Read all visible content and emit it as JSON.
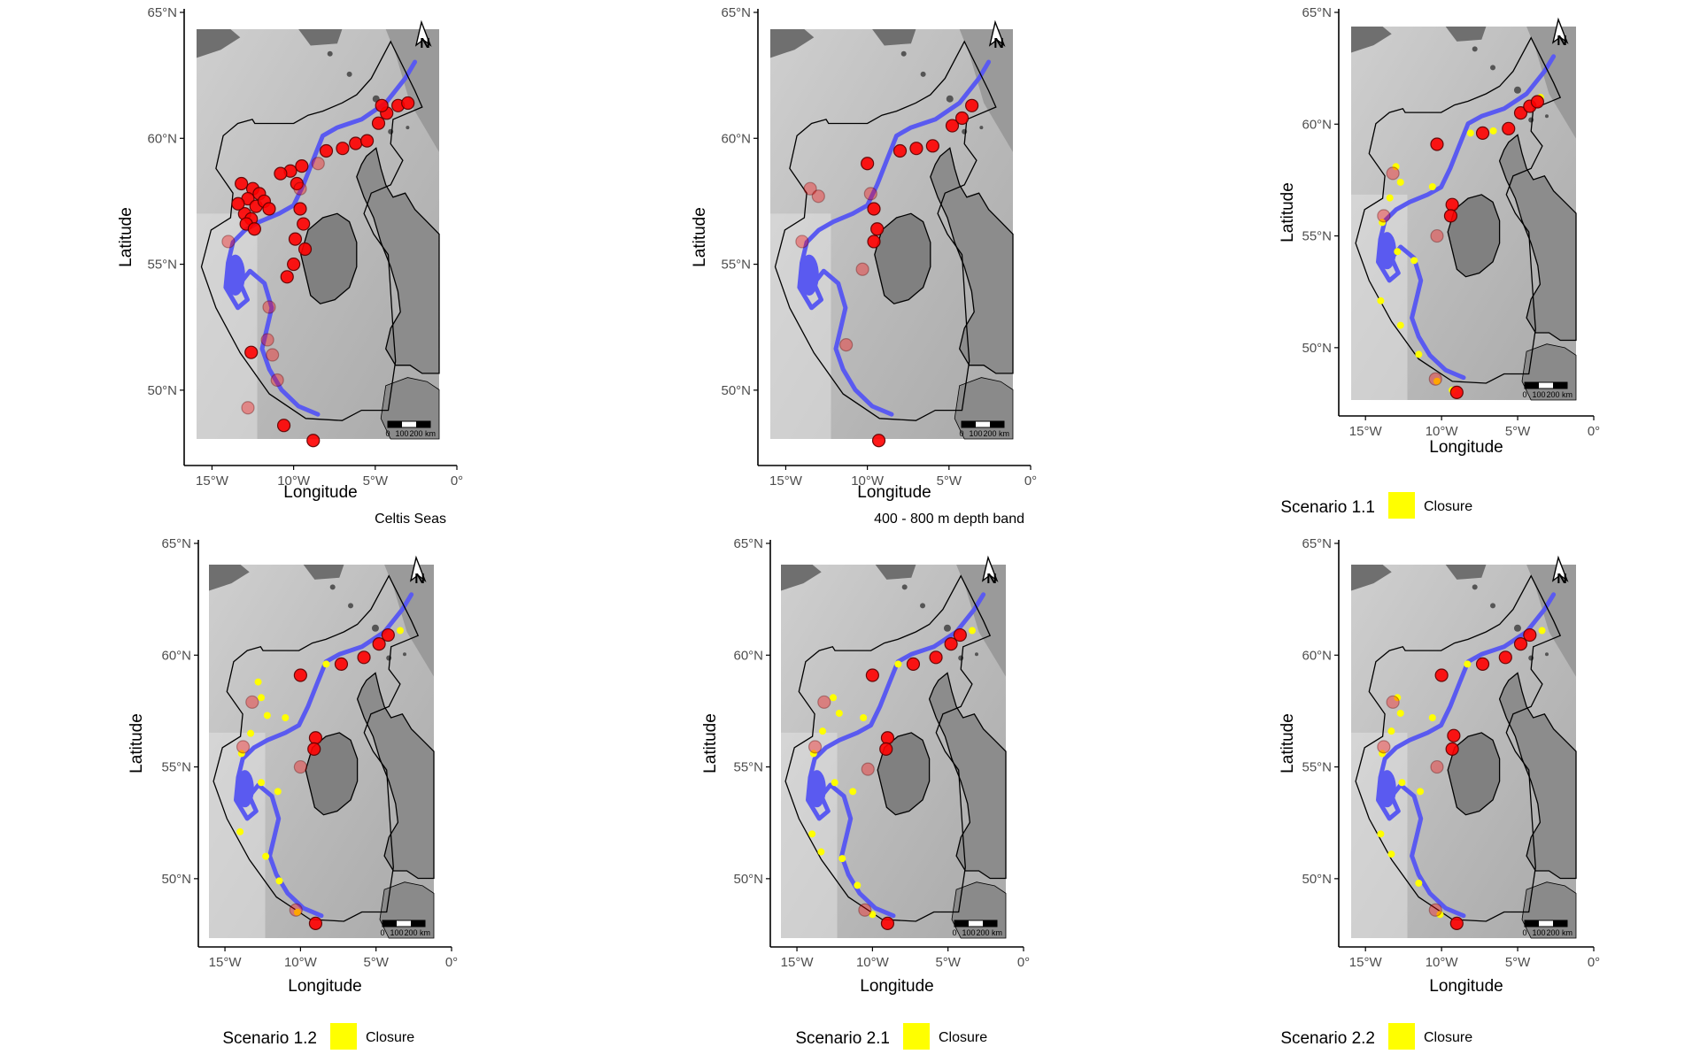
{
  "colors": {
    "sea_base": "#bdbdbd",
    "land": "#6f6f6f",
    "ireland": "#808080",
    "depth_band": "#5a5af0",
    "vme_point": "#ff0000",
    "closure": "#ffff00",
    "axis": "#000000",
    "tick_text": "#4d4d4d"
  },
  "map_extent": {
    "lon": [
      -16,
      0
    ],
    "lat": [
      47.5,
      65
    ]
  },
  "axis_labels": {
    "x_ticks": [
      "15°W",
      "10°W",
      "5°W",
      "0°"
    ],
    "y_ticks": [
      "50°N",
      "55°N",
      "60°N",
      "65°N"
    ]
  },
  "panels": [
    {
      "xlabel": "Longitude",
      "ylabel": "Latitude",
      "caption": "Celtis Seas",
      "legend_title": "",
      "legend_label": "",
      "scale_labels": [
        "0",
        "100",
        "200",
        "km"
      ],
      "north_label": "N",
      "points": [
        {
          "lon": -12.5,
          "lat": 58.0,
          "a": 0.9
        },
        {
          "lon": -12.8,
          "lat": 57.6,
          "a": 0.9
        },
        {
          "lon": -12.3,
          "lat": 57.3,
          "a": 0.9
        },
        {
          "lon": -13.0,
          "lat": 57.0,
          "a": 0.9
        },
        {
          "lon": -12.6,
          "lat": 56.8,
          "a": 0.9
        },
        {
          "lon": -12.1,
          "lat": 57.8,
          "a": 0.9
        },
        {
          "lon": -13.2,
          "lat": 58.2,
          "a": 0.9
        },
        {
          "lon": -11.8,
          "lat": 57.5,
          "a": 0.9
        },
        {
          "lon": -12.9,
          "lat": 56.6,
          "a": 0.9
        },
        {
          "lon": -13.4,
          "lat": 57.4,
          "a": 0.9
        },
        {
          "lon": -11.5,
          "lat": 57.2,
          "a": 0.9
        },
        {
          "lon": -12.4,
          "lat": 56.4,
          "a": 0.9
        },
        {
          "lon": -10.2,
          "lat": 58.7,
          "a": 0.9
        },
        {
          "lon": -9.5,
          "lat": 58.9,
          "a": 0.9
        },
        {
          "lon": -10.8,
          "lat": 58.6,
          "a": 0.9
        },
        {
          "lon": -9.8,
          "lat": 58.2,
          "a": 0.9
        },
        {
          "lon": -9.6,
          "lat": 57.2,
          "a": 0.9
        },
        {
          "lon": -9.4,
          "lat": 56.6,
          "a": 0.9
        },
        {
          "lon": -9.9,
          "lat": 56.0,
          "a": 0.9
        },
        {
          "lon": -9.3,
          "lat": 55.6,
          "a": 0.9
        },
        {
          "lon": -10.0,
          "lat": 55.0,
          "a": 0.9
        },
        {
          "lon": -10.4,
          "lat": 54.5,
          "a": 0.9
        },
        {
          "lon": -8.0,
          "lat": 59.5,
          "a": 0.9
        },
        {
          "lon": -7.0,
          "lat": 59.6,
          "a": 0.9
        },
        {
          "lon": -6.2,
          "lat": 59.8,
          "a": 0.9
        },
        {
          "lon": -5.5,
          "lat": 59.9,
          "a": 0.9
        },
        {
          "lon": -4.8,
          "lat": 60.6,
          "a": 0.9
        },
        {
          "lon": -4.3,
          "lat": 61.0,
          "a": 0.9
        },
        {
          "lon": -3.6,
          "lat": 61.3,
          "a": 0.9
        },
        {
          "lon": -3.0,
          "lat": 61.4,
          "a": 0.9
        },
        {
          "lon": -4.6,
          "lat": 61.3,
          "a": 0.9
        },
        {
          "lon": -12.6,
          "lat": 51.5,
          "a": 0.9
        },
        {
          "lon": -10.6,
          "lat": 48.6,
          "a": 0.9
        },
        {
          "lon": -8.8,
          "lat": 48.0,
          "a": 0.9
        },
        {
          "lon": -11.6,
          "lat": 52.0,
          "a": 0.35
        },
        {
          "lon": -11.3,
          "lat": 51.4,
          "a": 0.35
        },
        {
          "lon": -11.5,
          "lat": 53.3,
          "a": 0.35
        },
        {
          "lon": -11.0,
          "lat": 50.4,
          "a": 0.35
        },
        {
          "lon": -12.8,
          "lat": 49.3,
          "a": 0.35
        },
        {
          "lon": -14.0,
          "lat": 55.9,
          "a": 0.35
        },
        {
          "lon": -9.6,
          "lat": 58.0,
          "a": 0.35
        },
        {
          "lon": -8.5,
          "lat": 59.0,
          "a": 0.35
        }
      ],
      "closures": []
    },
    {
      "xlabel": "Longitude",
      "ylabel": "Latitude",
      "caption": "400 - 800 m depth band",
      "legend_title": "",
      "legend_label": "",
      "scale_labels": [
        "0",
        "100",
        "200",
        "km"
      ],
      "north_label": "N",
      "points": [
        {
          "lon": -8.0,
          "lat": 59.5,
          "a": 0.9
        },
        {
          "lon": -7.0,
          "lat": 59.6,
          "a": 0.9
        },
        {
          "lon": -6.0,
          "lat": 59.7,
          "a": 0.9
        },
        {
          "lon": -4.8,
          "lat": 60.5,
          "a": 0.9
        },
        {
          "lon": -4.2,
          "lat": 60.8,
          "a": 0.9
        },
        {
          "lon": -3.6,
          "lat": 61.3,
          "a": 0.9
        },
        {
          "lon": -9.6,
          "lat": 57.2,
          "a": 0.9
        },
        {
          "lon": -9.4,
          "lat": 56.4,
          "a": 0.9
        },
        {
          "lon": -9.6,
          "lat": 55.9,
          "a": 0.9
        },
        {
          "lon": -10.0,
          "lat": 59.0,
          "a": 0.9
        },
        {
          "lon": -9.3,
          "lat": 48.0,
          "a": 0.9
        },
        {
          "lon": -13.5,
          "lat": 58.0,
          "a": 0.35
        },
        {
          "lon": -13.0,
          "lat": 57.7,
          "a": 0.35
        },
        {
          "lon": -14.0,
          "lat": 55.9,
          "a": 0.35
        },
        {
          "lon": -11.3,
          "lat": 51.8,
          "a": 0.35
        },
        {
          "lon": -10.3,
          "lat": 54.8,
          "a": 0.35
        },
        {
          "lon": -9.8,
          "lat": 57.8,
          "a": 0.35
        }
      ],
      "closures": []
    },
    {
      "xlabel": "Longitude",
      "ylabel": "Latitude",
      "caption": "",
      "legend_title": "Scenario 1.1",
      "legend_label": "Closure",
      "scale_labels": [
        "0",
        "100",
        "200",
        "km"
      ],
      "north_label": "N",
      "points": [
        {
          "lon": -7.3,
          "lat": 59.6,
          "a": 0.9
        },
        {
          "lon": -5.6,
          "lat": 59.8,
          "a": 0.9
        },
        {
          "lon": -4.8,
          "lat": 60.5,
          "a": 0.9
        },
        {
          "lon": -4.2,
          "lat": 60.8,
          "a": 0.9
        },
        {
          "lon": -3.7,
          "lat": 61.0,
          "a": 0.9
        },
        {
          "lon": -10.3,
          "lat": 59.1,
          "a": 0.9
        },
        {
          "lon": -9.3,
          "lat": 56.4,
          "a": 0.9
        },
        {
          "lon": -9.4,
          "lat": 55.9,
          "a": 0.9
        },
        {
          "lon": -9.0,
          "lat": 48.0,
          "a": 0.9
        },
        {
          "lon": -13.2,
          "lat": 57.8,
          "a": 0.35
        },
        {
          "lon": -13.8,
          "lat": 55.9,
          "a": 0.35
        },
        {
          "lon": -10.3,
          "lat": 55.0,
          "a": 0.35
        },
        {
          "lon": -10.4,
          "lat": 48.6,
          "a": 0.35
        }
      ],
      "closures": [
        {
          "lon": -13.0,
          "lat": 58.1
        },
        {
          "lon": -12.7,
          "lat": 57.4
        },
        {
          "lon": -13.4,
          "lat": 56.7
        },
        {
          "lon": -13.9,
          "lat": 55.6
        },
        {
          "lon": -12.9,
          "lat": 54.3
        },
        {
          "lon": -11.8,
          "lat": 53.9
        },
        {
          "lon": -14.0,
          "lat": 52.1
        },
        {
          "lon": -12.7,
          "lat": 51.0
        },
        {
          "lon": -11.5,
          "lat": 49.7
        },
        {
          "lon": -10.3,
          "lat": 48.5
        },
        {
          "lon": -9.3,
          "lat": 48.1
        },
        {
          "lon": -8.1,
          "lat": 59.6
        },
        {
          "lon": -6.6,
          "lat": 59.7
        },
        {
          "lon": -3.5,
          "lat": 61.2
        },
        {
          "lon": -10.6,
          "lat": 57.2
        }
      ]
    },
    {
      "xlabel": "Longitude",
      "ylabel": "Latitude",
      "caption": "",
      "legend_title": "Scenario 1.2",
      "legend_label": "Closure",
      "scale_labels": [
        "0",
        "100",
        "200",
        "km"
      ],
      "north_label": "N",
      "points": [
        {
          "lon": -7.3,
          "lat": 59.6,
          "a": 0.9
        },
        {
          "lon": -5.8,
          "lat": 59.9,
          "a": 0.9
        },
        {
          "lon": -4.8,
          "lat": 60.5,
          "a": 0.9
        },
        {
          "lon": -4.2,
          "lat": 60.9,
          "a": 0.9
        },
        {
          "lon": -10.0,
          "lat": 59.1,
          "a": 0.9
        },
        {
          "lon": -9.0,
          "lat": 56.3,
          "a": 0.9
        },
        {
          "lon": -9.1,
          "lat": 55.8,
          "a": 0.9
        },
        {
          "lon": -9.0,
          "lat": 48.0,
          "a": 0.9
        },
        {
          "lon": -13.2,
          "lat": 57.9,
          "a": 0.35
        },
        {
          "lon": -13.8,
          "lat": 55.9,
          "a": 0.35
        },
        {
          "lon": -10.0,
          "lat": 55.0,
          "a": 0.35
        },
        {
          "lon": -10.3,
          "lat": 48.6,
          "a": 0.35
        }
      ],
      "closures": [
        {
          "lon": -12.8,
          "lat": 58.8
        },
        {
          "lon": -12.6,
          "lat": 58.1
        },
        {
          "lon": -12.2,
          "lat": 57.3
        },
        {
          "lon": -13.3,
          "lat": 56.5
        },
        {
          "lon": -13.9,
          "lat": 55.6
        },
        {
          "lon": -11.0,
          "lat": 57.2
        },
        {
          "lon": -12.6,
          "lat": 54.3
        },
        {
          "lon": -11.5,
          "lat": 53.9
        },
        {
          "lon": -14.0,
          "lat": 52.1
        },
        {
          "lon": -12.3,
          "lat": 51.0
        },
        {
          "lon": -11.4,
          "lat": 49.9
        },
        {
          "lon": -10.2,
          "lat": 48.5
        },
        {
          "lon": -8.3,
          "lat": 59.6
        },
        {
          "lon": -3.4,
          "lat": 61.1
        }
      ]
    },
    {
      "xlabel": "Longitude",
      "ylabel": "Latitude",
      "caption": "",
      "legend_title": "Scenario 2.1",
      "legend_label": "Closure",
      "scale_labels": [
        "0",
        "100",
        "200",
        "km"
      ],
      "north_label": "N",
      "points": [
        {
          "lon": -7.3,
          "lat": 59.6,
          "a": 0.9
        },
        {
          "lon": -5.8,
          "lat": 59.9,
          "a": 0.9
        },
        {
          "lon": -4.8,
          "lat": 60.5,
          "a": 0.9
        },
        {
          "lon": -4.2,
          "lat": 60.9,
          "a": 0.9
        },
        {
          "lon": -10.0,
          "lat": 59.1,
          "a": 0.9
        },
        {
          "lon": -9.0,
          "lat": 56.3,
          "a": 0.9
        },
        {
          "lon": -9.1,
          "lat": 55.8,
          "a": 0.9
        },
        {
          "lon": -9.0,
          "lat": 48.0,
          "a": 0.9
        },
        {
          "lon": -13.2,
          "lat": 57.9,
          "a": 0.35
        },
        {
          "lon": -13.8,
          "lat": 55.9,
          "a": 0.35
        },
        {
          "lon": -10.3,
          "lat": 54.9,
          "a": 0.35
        },
        {
          "lon": -10.5,
          "lat": 48.6,
          "a": 0.35
        }
      ],
      "closures": [
        {
          "lon": -12.6,
          "lat": 58.1
        },
        {
          "lon": -12.2,
          "lat": 57.4
        },
        {
          "lon": -13.3,
          "lat": 56.6
        },
        {
          "lon": -13.9,
          "lat": 55.6
        },
        {
          "lon": -10.6,
          "lat": 57.2
        },
        {
          "lon": -12.5,
          "lat": 54.3
        },
        {
          "lon": -11.3,
          "lat": 53.9
        },
        {
          "lon": -14.0,
          "lat": 52.0
        },
        {
          "lon": -13.4,
          "lat": 51.2
        },
        {
          "lon": -12.0,
          "lat": 50.9
        },
        {
          "lon": -11.0,
          "lat": 49.7
        },
        {
          "lon": -10.0,
          "lat": 48.4
        },
        {
          "lon": -8.3,
          "lat": 59.6
        },
        {
          "lon": -3.4,
          "lat": 61.1
        }
      ]
    },
    {
      "xlabel": "Longitude",
      "ylabel": "Latitude",
      "caption": "",
      "legend_title": "Scenario 2.2",
      "legend_label": "Closure",
      "scale_labels": [
        "0",
        "100",
        "200",
        "km"
      ],
      "north_label": "N",
      "points": [
        {
          "lon": -7.3,
          "lat": 59.6,
          "a": 0.9
        },
        {
          "lon": -5.8,
          "lat": 59.9,
          "a": 0.9
        },
        {
          "lon": -4.8,
          "lat": 60.5,
          "a": 0.9
        },
        {
          "lon": -4.2,
          "lat": 60.9,
          "a": 0.9
        },
        {
          "lon": -10.0,
          "lat": 59.1,
          "a": 0.9
        },
        {
          "lon": -9.2,
          "lat": 56.4,
          "a": 0.9
        },
        {
          "lon": -9.3,
          "lat": 55.8,
          "a": 0.9
        },
        {
          "lon": -9.0,
          "lat": 48.0,
          "a": 0.9
        },
        {
          "lon": -13.2,
          "lat": 57.9,
          "a": 0.35
        },
        {
          "lon": -13.8,
          "lat": 55.9,
          "a": 0.35
        },
        {
          "lon": -10.3,
          "lat": 55.0,
          "a": 0.35
        },
        {
          "lon": -10.4,
          "lat": 48.6,
          "a": 0.35
        }
      ],
      "closures": [
        {
          "lon": -12.9,
          "lat": 58.1
        },
        {
          "lon": -12.7,
          "lat": 57.4
        },
        {
          "lon": -13.3,
          "lat": 56.6
        },
        {
          "lon": -13.9,
          "lat": 55.6
        },
        {
          "lon": -10.6,
          "lat": 57.2
        },
        {
          "lon": -12.6,
          "lat": 54.3
        },
        {
          "lon": -11.4,
          "lat": 53.9
        },
        {
          "lon": -14.0,
          "lat": 52.0
        },
        {
          "lon": -13.3,
          "lat": 51.1
        },
        {
          "lon": -11.5,
          "lat": 49.8
        },
        {
          "lon": -10.1,
          "lat": 48.4
        },
        {
          "lon": -8.3,
          "lat": 59.6
        },
        {
          "lon": -3.4,
          "lat": 61.1
        }
      ]
    }
  ]
}
